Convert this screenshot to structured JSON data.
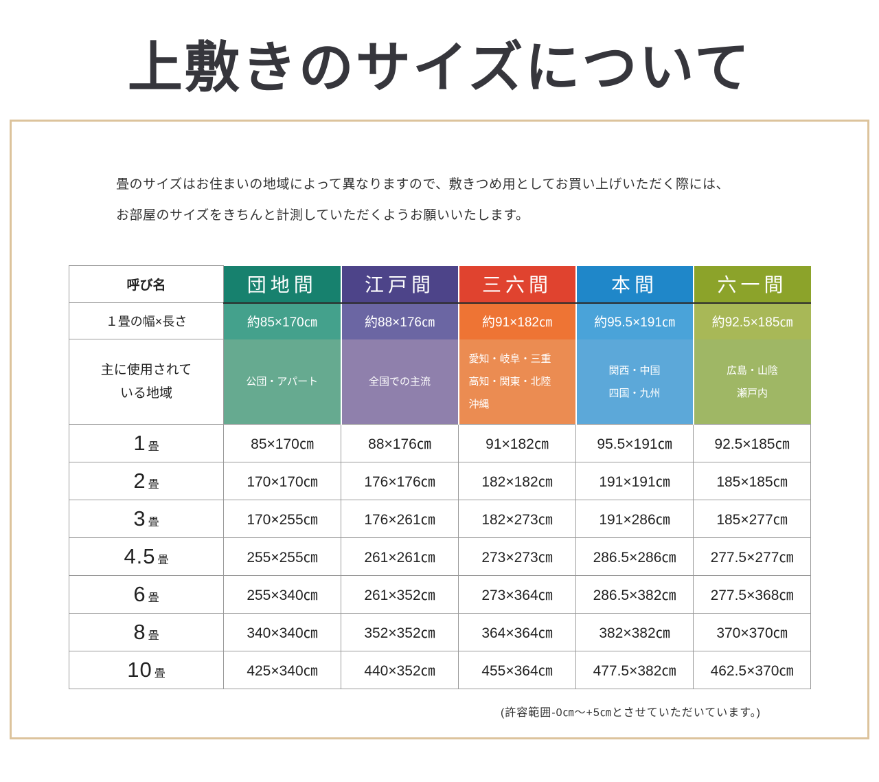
{
  "page": {
    "title": "上敷きのサイズについて",
    "intro": {
      "line1": "畳のサイズはお住まいの地域によって異なりますので、敷きつめ用としてお買い上げいただく際には、",
      "line2": "お部屋のサイズをきちんと計測していただくようお願いいたします。"
    },
    "footnote": "(許容範囲-0㎝～+5㎝とさせていただいています。)"
  },
  "colors": {
    "frame_border": "#dcc39c",
    "grid_line": "#999999",
    "header_divider": "#2b2b2b",
    "title_text": "#36363c"
  },
  "table": {
    "name_header": "呼び名",
    "width_row_label": "１畳の幅×長さ",
    "region_row_label_line1": "主に使用されて",
    "region_row_label_line2": "いる地域",
    "unit": "畳",
    "columns": [
      {
        "name": "団地間",
        "size": "約85×170㎝",
        "regions": [
          "公団・アパート"
        ],
        "colors": {
          "header": "#17816e",
          "size": "#44a18c",
          "region": "#66aa90"
        }
      },
      {
        "name": "江戸間",
        "size": "約88×176㎝",
        "regions": [
          "全国での主流"
        ],
        "colors": {
          "header": "#4d4489",
          "size": "#6b66a3",
          "region": "#8f80ac"
        }
      },
      {
        "name": "三六間",
        "size": "約91×182㎝",
        "regions": [
          "愛知・岐阜・三重",
          "高知・関東・北陸",
          "沖縄"
        ],
        "colors": {
          "header": "#e0432f",
          "size": "#ee7434",
          "region": "#eb8c52"
        }
      },
      {
        "name": "本間",
        "size": "約95.5×191㎝",
        "regions": [
          "関西・中国",
          "四国・九州"
        ],
        "colors": {
          "header": "#1f87c9",
          "size": "#4aa3d9",
          "region": "#5ca8d9"
        }
      },
      {
        "name": "六一間",
        "size": "約92.5×185㎝",
        "regions": [
          "広島・山陰",
          "瀬戸内"
        ],
        "colors": {
          "header": "#8ca32a",
          "size": "#a8b857",
          "region": "#9fb765"
        }
      }
    ],
    "rows": [
      {
        "num": "1",
        "values": [
          "85×170㎝",
          "88×176㎝",
          "91×182㎝",
          "95.5×191㎝",
          "92.5×185㎝"
        ]
      },
      {
        "num": "2",
        "values": [
          "170×170㎝",
          "176×176㎝",
          "182×182㎝",
          "191×191㎝",
          "185×185㎝"
        ]
      },
      {
        "num": "3",
        "values": [
          "170×255㎝",
          "176×261㎝",
          "182×273㎝",
          "191×286㎝",
          "185×277㎝"
        ]
      },
      {
        "num": "4.5",
        "values": [
          "255×255㎝",
          "261×261㎝",
          "273×273㎝",
          "286.5×286㎝",
          "277.5×277㎝"
        ]
      },
      {
        "num": "6",
        "values": [
          "255×340㎝",
          "261×352㎝",
          "273×364㎝",
          "286.5×382㎝",
          "277.5×368㎝"
        ]
      },
      {
        "num": "8",
        "values": [
          "340×340㎝",
          "352×352㎝",
          "364×364㎝",
          "382×382㎝",
          "370×370㎝"
        ]
      },
      {
        "num": "10",
        "values": [
          "425×340㎝",
          "440×352㎝",
          "455×364㎝",
          "477.5×382㎝",
          "462.5×370㎝"
        ]
      }
    ]
  }
}
